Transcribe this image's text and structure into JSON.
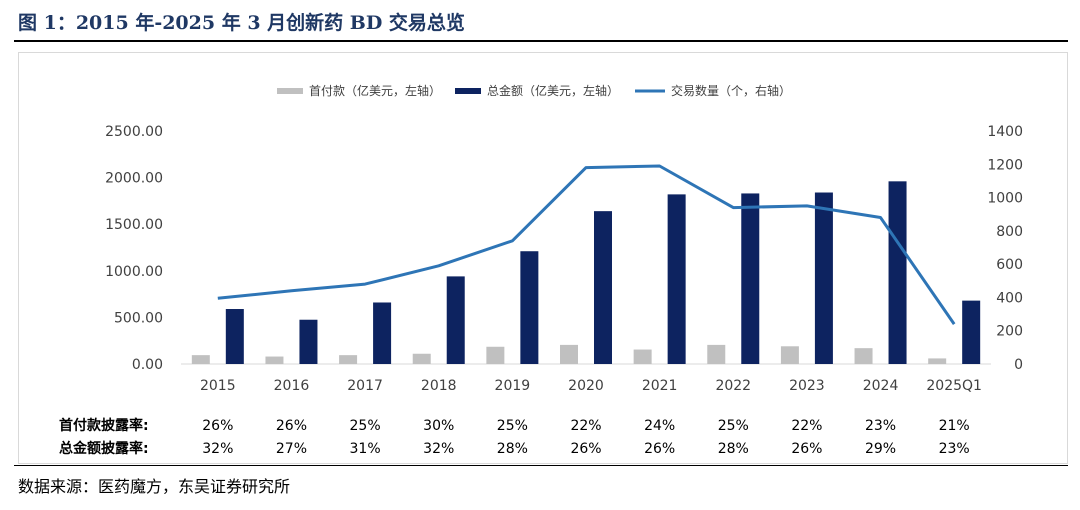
{
  "figure": {
    "title": "图 1：2015 年-2025 年 3 月创新药 BD 交易总览",
    "source": "数据来源：医药魔方，东吴证券研究所"
  },
  "chart_data": {
    "type": "bar",
    "title": "",
    "categories": [
      "2015",
      "2016",
      "2017",
      "2018",
      "2019",
      "2020",
      "2021",
      "2022",
      "2023",
      "2024",
      "2025Q1"
    ],
    "series": [
      {
        "name": "首付款（亿美元，左轴）",
        "type": "bar",
        "axis": "left",
        "color": "#c0c0c0",
        "values": [
          95,
          80,
          95,
          110,
          185,
          205,
          155,
          205,
          190,
          170,
          60
        ]
      },
      {
        "name": "总金额（亿美元，左轴）",
        "type": "bar",
        "axis": "left",
        "color": "#0d2360",
        "values": [
          590,
          475,
          660,
          940,
          1210,
          1640,
          1820,
          1830,
          1840,
          1960,
          680
        ]
      },
      {
        "name": "交易数量（个，右轴）",
        "type": "line",
        "axis": "right",
        "color": "#2e75b6",
        "values": [
          395,
          440,
          480,
          590,
          740,
          1180,
          1190,
          940,
          950,
          880,
          240
        ]
      }
    ],
    "y_left": {
      "min": 0,
      "max": 2500,
      "ticks": [
        "0.00",
        "500.00",
        "1000.00",
        "1500.00",
        "2000.00",
        "2500.00"
      ]
    },
    "y_right": {
      "min": 0,
      "max": 1400,
      "ticks": [
        "0",
        "200",
        "400",
        "600",
        "800",
        "1000",
        "1200",
        "1400"
      ]
    },
    "grid": false,
    "legend_position": "top-center",
    "rows": [
      {
        "label": "首付款披露率:",
        "values": [
          "26%",
          "26%",
          "25%",
          "30%",
          "25%",
          "22%",
          "24%",
          "25%",
          "22%",
          "23%",
          "21%"
        ]
      },
      {
        "label": "总金额披露率:",
        "values": [
          "32%",
          "27%",
          "31%",
          "32%",
          "28%",
          "26%",
          "26%",
          "28%",
          "26%",
          "29%",
          "23%"
        ]
      }
    ]
  }
}
